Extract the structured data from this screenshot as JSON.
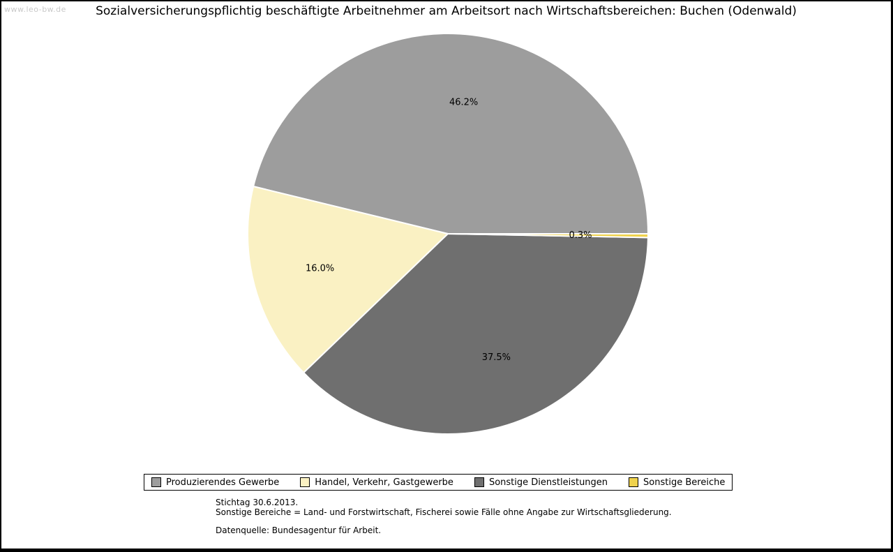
{
  "watermark": "www.leo-bw.de",
  "title": "Sozialversicherungspflichtig beschäftigte Arbeitnehmer am Arbeitsort nach Wirtschaftsbereichen: Buchen (Odenwald)",
  "chart_data": {
    "type": "pie",
    "title": "Sozialversicherungspflichtig beschäftigte Arbeitnehmer am Arbeitsort nach Wirtschaftsbereichen: Buchen (Odenwald)",
    "unit": "percent",
    "start_angle_deg": 0,
    "direction": "counterclockwise",
    "legend_position": "bottom",
    "slices": [
      {
        "label": "Produzierendes Gewerbe",
        "value": 46.2,
        "pct_label": "46.2%",
        "color": "#9d9d9d"
      },
      {
        "label": "Handel, Verkehr, Gastgewerbe",
        "value": 16.0,
        "pct_label": "16.0%",
        "color": "#faf1c3"
      },
      {
        "label": "Sonstige Dienstleistungen",
        "value": 37.5,
        "pct_label": "37.5%",
        "color": "#6f6f6f"
      },
      {
        "label": "Sonstige Bereiche",
        "value": 0.3,
        "pct_label": "0.3%",
        "color": "#efd24d"
      }
    ]
  },
  "footer": {
    "line1": "Stichtag 30.6.2013.",
    "line2": "Sonstige Bereiche = Land- und Forstwirtschaft, Fischerei sowie Fälle ohne Angabe zur Wirtschaftsgliederung.",
    "line3": "Datenquelle: Bundesagentur für Arbeit."
  }
}
